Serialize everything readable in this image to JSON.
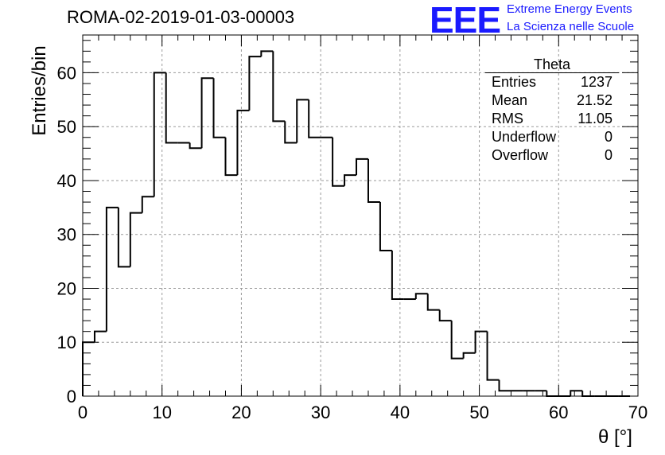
{
  "page": {
    "title": "ROMA-02-2019-01-03-00003",
    "logo_text": "EEE",
    "logo_line1": "Extreme Energy Events",
    "logo_line2": "La Scienza nelle Scuole"
  },
  "stats_box": {
    "title": "Theta",
    "rows": [
      {
        "label": "Entries",
        "value": "1237"
      },
      {
        "label": "Mean",
        "value": "21.52"
      },
      {
        "label": "RMS",
        "value": "11.05"
      },
      {
        "label": "Underflow",
        "value": "0"
      },
      {
        "label": "Overflow",
        "value": "0"
      }
    ]
  },
  "colors": {
    "line": "#000000",
    "grid": "#9a9a9a",
    "logo": "#1a1aff"
  },
  "chart_data": {
    "type": "bar",
    "style": "step-histogram",
    "xlabel": "θ [°]",
    "ylabel": "Entries/bin",
    "xlim": [
      0,
      70
    ],
    "ylim": [
      0,
      67
    ],
    "xticks": [
      0,
      10,
      20,
      30,
      40,
      50,
      60,
      70
    ],
    "yticks": [
      0,
      10,
      20,
      30,
      40,
      50,
      60
    ],
    "grid": true,
    "bin_width": 1.5,
    "bin_start": 0,
    "values": [
      10,
      12,
      35,
      24,
      34,
      37,
      60,
      47,
      47,
      46,
      59,
      48,
      41,
      53,
      63,
      64,
      51,
      47,
      55,
      48,
      48,
      39,
      41,
      44,
      36,
      27,
      18,
      18,
      19,
      16,
      14,
      7,
      8,
      12,
      3,
      1,
      1,
      1,
      1,
      0,
      0,
      1,
      0,
      0,
      0,
      0
    ]
  }
}
